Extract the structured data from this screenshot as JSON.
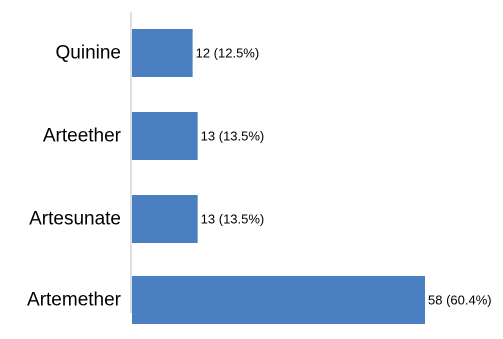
{
  "chart_data": {
    "type": "bar",
    "orientation": "horizontal",
    "categories": [
      "Quinine",
      "Arteether",
      "Artesunate",
      "Artemether"
    ],
    "values": [
      12,
      13,
      13,
      58
    ],
    "data_labels": [
      "12 (12.5%)",
      "13 (13.5%)",
      "13 (13.5%)",
      "58 (60.4%)"
    ],
    "title": "",
    "xlabel": "",
    "ylabel": "",
    "xlim": [
      0,
      58
    ],
    "grid": false,
    "legend": "none",
    "bar_color": "#4a7fc1",
    "axis_color": "#bfbfbf"
  }
}
